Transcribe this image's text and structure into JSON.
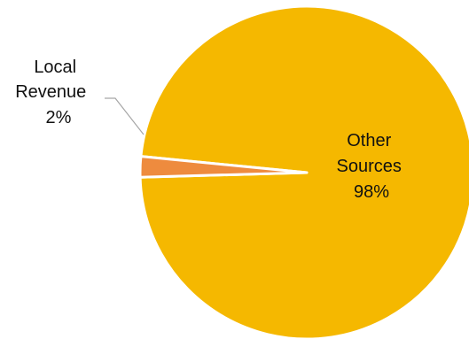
{
  "chart_data": {
    "type": "pie",
    "slices": [
      {
        "name": "Other Sources",
        "value": 98,
        "color": "#F5B800",
        "label_lines": [
          "Other",
          "Sources",
          "98%"
        ]
      },
      {
        "name": "Local Revenue",
        "value": 2,
        "color": "#EE8B3E",
        "label_lines": [
          "Local",
          "Revenue",
          "2%"
        ]
      }
    ],
    "legend": "none",
    "slice_border_color": "#FFFFFF"
  }
}
